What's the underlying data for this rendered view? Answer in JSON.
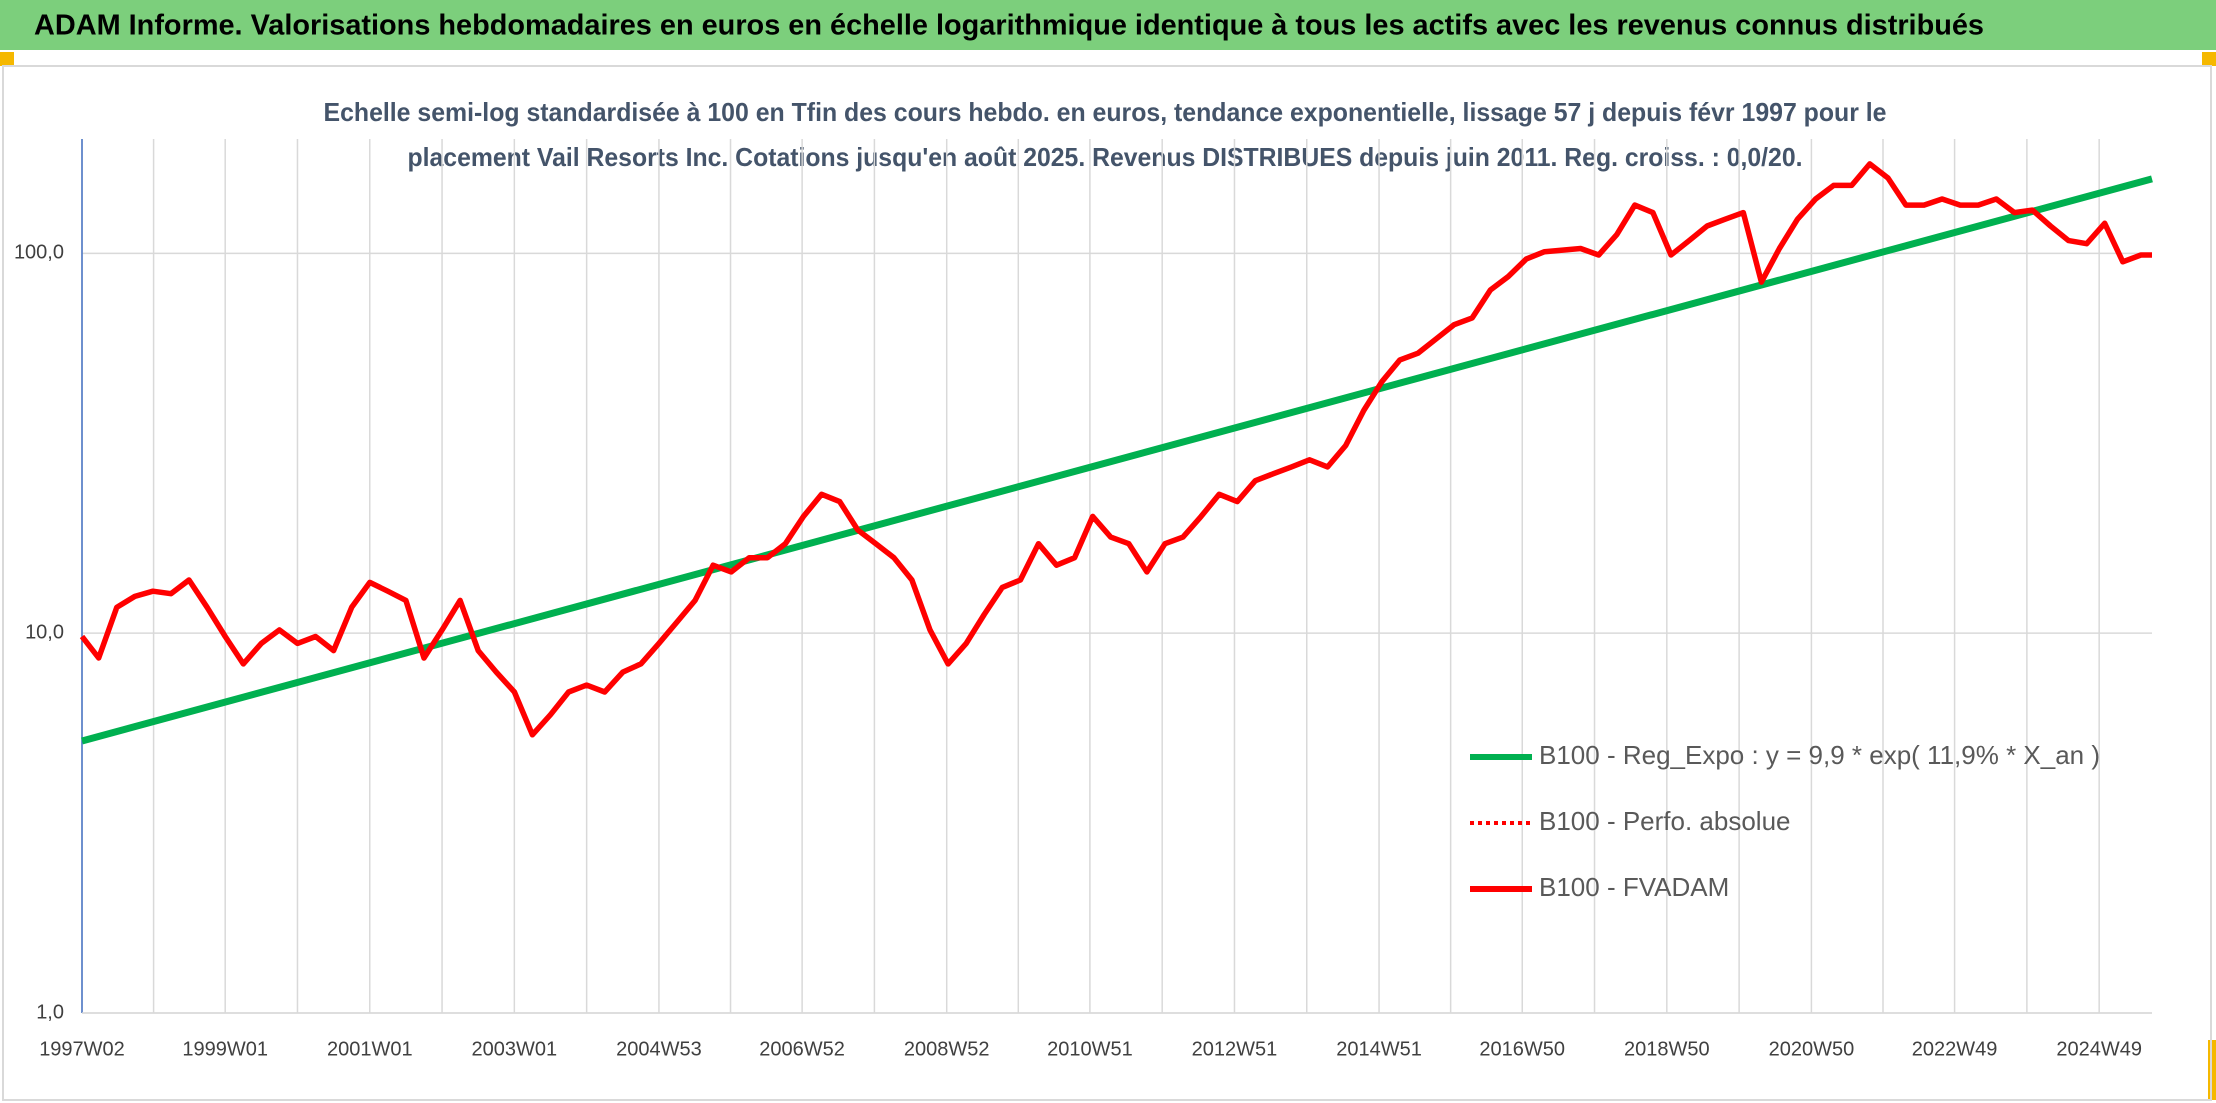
{
  "chart_data": {
    "type": "line",
    "title": "ADAM Informe. Valorisations hebdomadaires en euros en échelle logarithmique identique à tous les actifs avec les revenus connus distribués",
    "subtitle": [
      "Echelle semi-log standardisée à 100 en Tfin des cours hebdo. en euros, tendance exponentielle, lissage 57 j depuis févr 1997 pour le",
      "placement Vail Resorts Inc. Cotations jusqu'en août 2025. Revenus DISTRIBUES depuis juin 2011. Reg. croiss. : 0,0/20."
    ],
    "log_scale_y": true,
    "grid": true,
    "legend": "center-right",
    "xlim": [
      "1997W02",
      "2025W35"
    ],
    "xticks": [
      "1997W02",
      "1999W01",
      "2001W01",
      "2003W01",
      "2004W53",
      "2006W52",
      "2008W52",
      "2010W51",
      "2012W51",
      "2014W51",
      "2016W50",
      "2018W50",
      "2020W50",
      "2022W49",
      "2024W49"
    ],
    "ylim": [
      1,
      200
    ],
    "yticks": [
      {
        "value": 1,
        "label": "1,0"
      },
      {
        "value": 10,
        "label": "10,0"
      },
      {
        "value": 100,
        "label": "100,0"
      }
    ],
    "series": [
      {
        "name": "B100 - Reg_Expo : y = 9,9 * exp( 11,9% *  X_an )",
        "color": "#00b050",
        "style": "solid",
        "x": [
          "1997W02",
          "2025W35"
        ],
        "values": [
          5.2,
          157
        ]
      },
      {
        "name": "B100 - Perfo. absolue",
        "color": "#ff0000",
        "style": "dotted",
        "x": [],
        "values": []
      },
      {
        "name": "B100 - FVADAM",
        "color": "#ff0000",
        "style": "solid",
        "x": [
          "1997W02",
          "1997W14",
          "1997W27",
          "1997W40",
          "1998W01",
          "1998W14",
          "1998W27",
          "1998W40",
          "1999W01",
          "1999W14",
          "1999W27",
          "1999W40",
          "2000W01",
          "2000W14",
          "2000W27",
          "2000W40",
          "2001W01",
          "2001W14",
          "2001W27",
          "2001W40",
          "2002W01",
          "2002W14",
          "2002W27",
          "2002W40",
          "2003W01",
          "2003W14",
          "2003W27",
          "2003W40",
          "2004W01",
          "2004W14",
          "2004W27",
          "2004W40",
          "2005W01",
          "2005W14",
          "2005W27",
          "2005W40",
          "2006W01",
          "2006W14",
          "2006W27",
          "2006W40",
          "2007W01",
          "2007W14",
          "2007W27",
          "2007W40",
          "2008W01",
          "2008W14",
          "2008W27",
          "2008W40",
          "2009W01",
          "2009W14",
          "2009W27",
          "2009W40",
          "2010W01",
          "2010W14",
          "2010W27",
          "2010W40",
          "2011W01",
          "2011W14",
          "2011W27",
          "2011W40",
          "2012W01",
          "2012W14",
          "2012W27",
          "2012W40",
          "2013W01",
          "2013W14",
          "2013W27",
          "2013W40",
          "2014W01",
          "2014W14",
          "2014W27",
          "2014W40",
          "2015W01",
          "2015W14",
          "2015W27",
          "2015W40",
          "2016W01",
          "2016W14",
          "2016W27",
          "2016W40",
          "2017W01",
          "2017W14",
          "2017W27",
          "2017W40",
          "2018W01",
          "2018W14",
          "2018W27",
          "2018W40",
          "2019W01",
          "2019W14",
          "2019W27",
          "2019W40",
          "2020W01",
          "2020W14",
          "2020W27",
          "2020W40",
          "2021W01",
          "2021W14",
          "2021W27",
          "2021W40",
          "2022W01",
          "2022W14",
          "2022W27",
          "2022W40",
          "2023W01",
          "2023W14",
          "2023W27",
          "2023W40",
          "2024W01",
          "2024W14",
          "2024W27",
          "2024W40",
          "2025W01",
          "2025W14",
          "2025W27",
          "2025W35"
        ],
        "values": [
          9.8,
          8.6,
          11.7,
          12.5,
          12.9,
          12.7,
          13.8,
          11.7,
          9.8,
          8.3,
          9.4,
          10.2,
          9.4,
          9.8,
          9.0,
          11.7,
          13.6,
          12.9,
          12.2,
          8.6,
          10.2,
          12.2,
          9.0,
          7.9,
          7.0,
          5.4,
          6.1,
          7.0,
          7.3,
          7.0,
          7.9,
          8.3,
          9.4,
          10.7,
          12.2,
          15.1,
          14.5,
          15.8,
          15.8,
          17.2,
          20.3,
          23.2,
          22.2,
          18.7,
          17.2,
          15.8,
          13.8,
          10.2,
          8.3,
          9.4,
          11.2,
          13.2,
          13.8,
          17.2,
          15.1,
          15.8,
          20.3,
          17.9,
          17.2,
          14.5,
          17.2,
          17.9,
          20.3,
          23.2,
          22.2,
          25.2,
          26.3,
          27.4,
          28.6,
          27.4,
          31.2,
          38.6,
          45.9,
          52.4,
          54.6,
          59.5,
          64.9,
          67.6,
          80,
          86.9,
          96.7,
          101,
          102,
          103,
          99,
          112,
          134,
          128,
          99,
          108,
          118,
          123,
          128,
          84,
          103,
          123,
          139,
          151,
          151,
          172,
          158,
          134,
          134,
          139,
          134,
          134,
          139,
          128,
          130,
          118,
          108,
          106,
          120,
          95,
          99,
          99
        ]
      }
    ]
  }
}
